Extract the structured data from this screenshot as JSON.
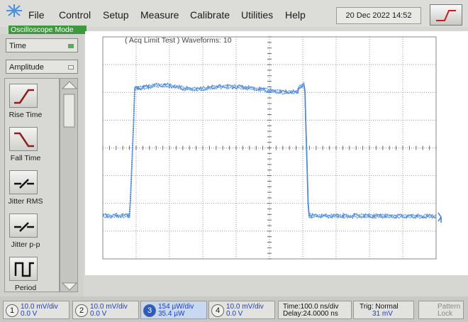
{
  "menu": {
    "items": [
      "File",
      "Control",
      "Setup",
      "Measure",
      "Calibrate",
      "Utilities",
      "Help"
    ],
    "datetime": "20 Dec 2022  14:52"
  },
  "mode": "Oscilloscope Mode",
  "side_panel": {
    "selectors": [
      "Time",
      "Amplitude"
    ],
    "measurements": [
      "Rise Time",
      "Fall Time",
      "Jitter RMS",
      "Jitter p-p",
      "Period"
    ]
  },
  "display": {
    "status": "( Acq Limit Test )  Waveforms: 10"
  },
  "status_bar": {
    "channels": [
      {
        "number": "1",
        "scale": "10.0 mV/div",
        "offset": "0.0 V"
      },
      {
        "number": "2",
        "scale": "10.0 mV/div",
        "offset": "0.0 V"
      },
      {
        "number": "3",
        "scale": "154 µW/div",
        "offset": "35.4 µW"
      },
      {
        "number": "4",
        "scale": "10.0 mV/div",
        "offset": "0.0 V"
      }
    ],
    "timebase": {
      "time": "Time:100.0 ns/div",
      "delay": "Delay:24.0000 ns"
    },
    "trigger": {
      "mode": "Trig: Normal",
      "level": "31 mV"
    },
    "pattern_lock": {
      "top": "Pattern",
      "bottom": "Lock"
    }
  }
}
